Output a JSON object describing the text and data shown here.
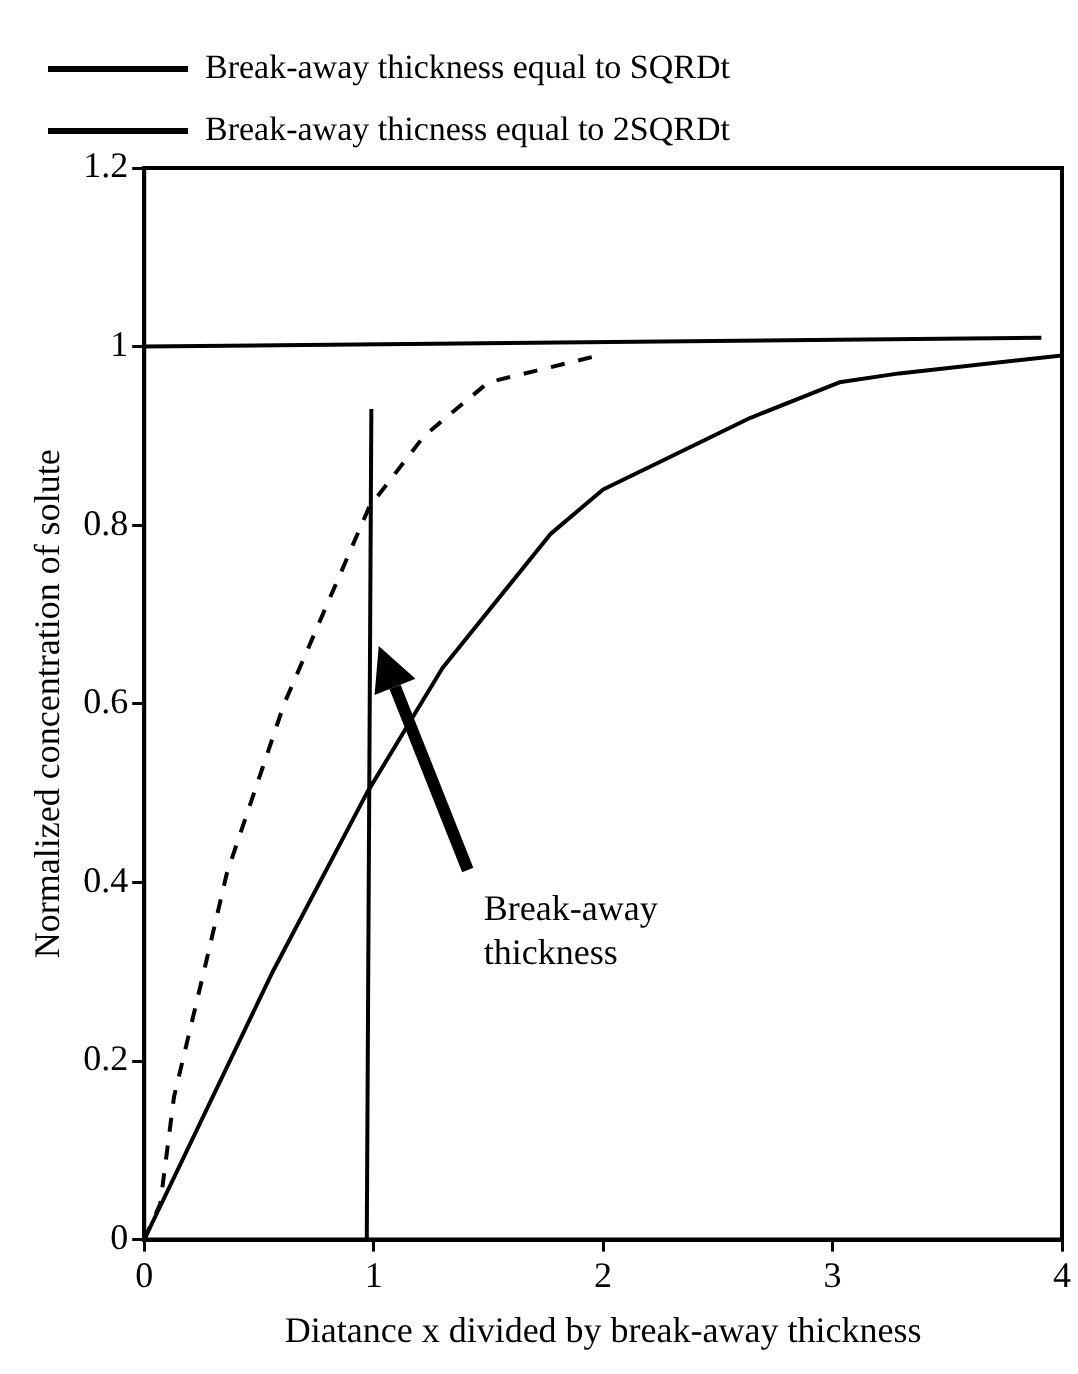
{
  "chart_data": {
    "type": "line",
    "xlabel": "Diatance x divided by break-away thickness",
    "ylabel": "Normalized concentration of solute",
    "xlim": [
      0,
      4
    ],
    "xticks": [
      0,
      1,
      2,
      3,
      4
    ],
    "ylim": [
      0,
      1.2
    ],
    "yticks": [
      0,
      0.2,
      0.4,
      0.6,
      0.8,
      1,
      1.2
    ],
    "grid": false,
    "legend": "top",
    "marker": "none",
    "annotations": [
      "Break-away thickness"
    ],
    "series": [
      {
        "name": "Break-away thickness equal to SQRDt",
        "color": "#000000",
        "line_style": "solid",
        "x": [
          0,
          0.56,
          0.97,
          1.3,
          1.77,
          2.0,
          2.24,
          2.64,
          3.03,
          3.29,
          4.0
        ],
        "values": [
          0,
          0.3,
          0.5,
          0.64,
          0.79,
          0.84,
          0.87,
          0.92,
          0.96,
          0.97,
          0.99
        ]
      },
      {
        "name": "Break-away thicness equal to 2SQRDt",
        "color": "#000000",
        "line_style": "dashed",
        "x": [
          0,
          0.07,
          0.13,
          0.26,
          0.36,
          0.61,
          0.98,
          1.22,
          1.5,
          1.98
        ],
        "values": [
          0,
          0.04,
          0.16,
          0.3,
          0.41,
          0.6,
          0.82,
          0.9,
          0.96,
          0.99
        ]
      },
      {
        "color": "#000000",
        "line_style": "solid",
        "x": [
          0,
          3.91
        ],
        "values": [
          1.0,
          1.01
        ]
      },
      {
        "color": "#000000",
        "line_style": "solid",
        "x": [
          0.97,
          0.99
        ],
        "values": [
          0,
          0.93
        ]
      }
    ]
  }
}
